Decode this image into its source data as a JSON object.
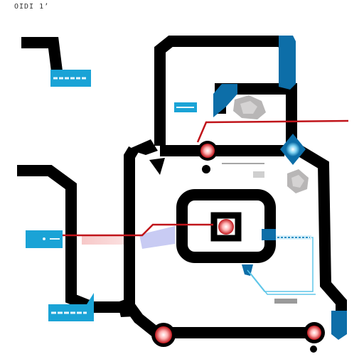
{
  "header": {
    "title": "OIDI 1’",
    "subtitle": "",
    "caption": ""
  },
  "colors": {
    "track": "#000000",
    "accent_blue": "#0d6ea8",
    "label_cyan": "#1aa3d6",
    "signal_red": "#c0141a",
    "node_glow": "#ff9b9b",
    "flow_cyan": "#5fc6e8",
    "pink_fill": "#f7c8c8",
    "lavender_fill": "#c8cbf3",
    "rock_gray": "#b8b6b6"
  },
  "labels": {
    "top_left": "",
    "mid_small": "",
    "left_mid": "",
    "bottom_left": "",
    "right_note": "",
    "lower_note": ""
  },
  "icons": {
    "rock_top": "rock-icon",
    "rock_right": "rock-icon",
    "node": "glowing-node-icon",
    "diamond": "cyan-diamond-icon"
  }
}
